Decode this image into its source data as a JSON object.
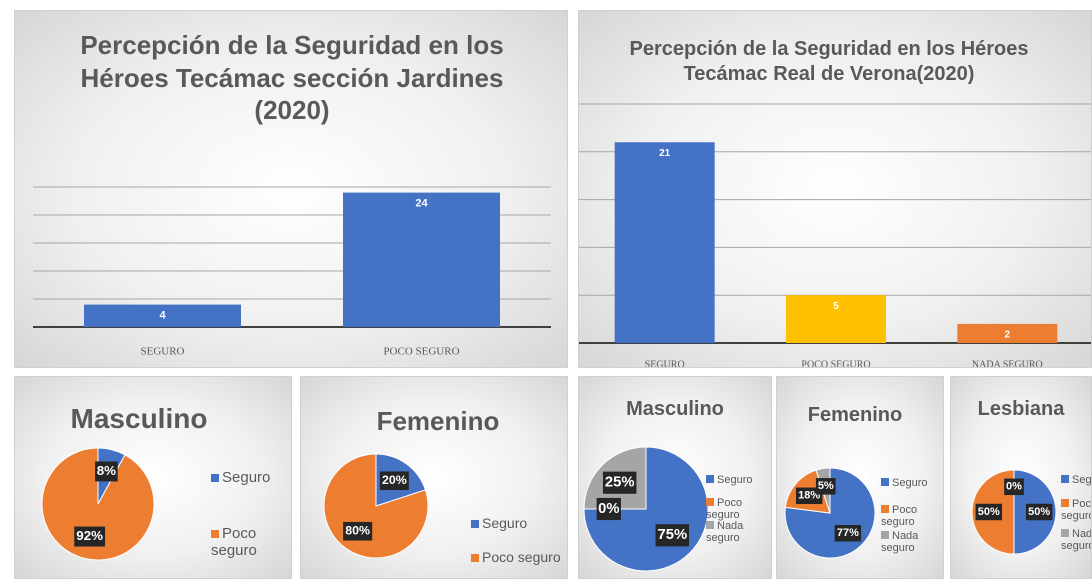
{
  "chart_data": [
    {
      "type": "bar",
      "title": "Percepción de la Seguridad en los Héroes Tecámac sección Jardines (2020)",
      "categories": [
        "SEGURO",
        "POCO SEGURO"
      ],
      "values": [
        4,
        24
      ],
      "color": "#4472c4",
      "ylim": [
        0,
        25
      ],
      "yticks": [
        0,
        5,
        10,
        15,
        20,
        25
      ],
      "grid": true
    },
    {
      "type": "bar",
      "title": "Percepción de la Seguridad en los Héroes Tecámac Real de Verona(2020)",
      "categories": [
        "SEGURO",
        "POCO SEGURO",
        "NADA SEGURO"
      ],
      "values": [
        21,
        5,
        2
      ],
      "colors": [
        "#4472c4",
        "#ffc000",
        "#ed7d31"
      ],
      "ylim": [
        0,
        25
      ],
      "yticks": [
        0,
        5,
        10,
        15,
        20,
        25
      ],
      "grid": true
    },
    {
      "type": "pie",
      "title": "Masculino",
      "categories": [
        "Seguro",
        "Poco seguro"
      ],
      "values": [
        8,
        92
      ],
      "value_labels": [
        "8%",
        "92%"
      ],
      "colors": [
        "#4472c4",
        "#ed7d31"
      ]
    },
    {
      "type": "pie",
      "title": "Femenino",
      "categories": [
        "Seguro",
        "Poco seguro"
      ],
      "values": [
        20,
        80
      ],
      "value_labels": [
        "20%",
        "80%"
      ],
      "colors": [
        "#4472c4",
        "#ed7d31"
      ]
    },
    {
      "type": "pie",
      "title": "Masculino",
      "categories": [
        "Seguro",
        "Poco seguro",
        "Nada seguro"
      ],
      "values": [
        75,
        0,
        25
      ],
      "value_labels": [
        "75%",
        "0%",
        "25%"
      ],
      "colors": [
        "#4472c4",
        "#ed7d31",
        "#a5a5a5"
      ]
    },
    {
      "type": "pie",
      "title": "Femenino",
      "categories": [
        "Seguro",
        "Poco seguro",
        "Nada seguro"
      ],
      "values": [
        77,
        18,
        5
      ],
      "value_labels": [
        "77%",
        "18%",
        "5%"
      ],
      "colors": [
        "#4472c4",
        "#ed7d31",
        "#a5a5a5"
      ]
    },
    {
      "type": "pie",
      "title": "Lesbiana",
      "categories": [
        "Seguro",
        "Poco seguro",
        "Nada seguro"
      ],
      "values": [
        50,
        50,
        0
      ],
      "value_labels": [
        "50%",
        "50%",
        "0%"
      ],
      "colors": [
        "#4472c4",
        "#ed7d31",
        "#a5a5a5"
      ]
    }
  ]
}
